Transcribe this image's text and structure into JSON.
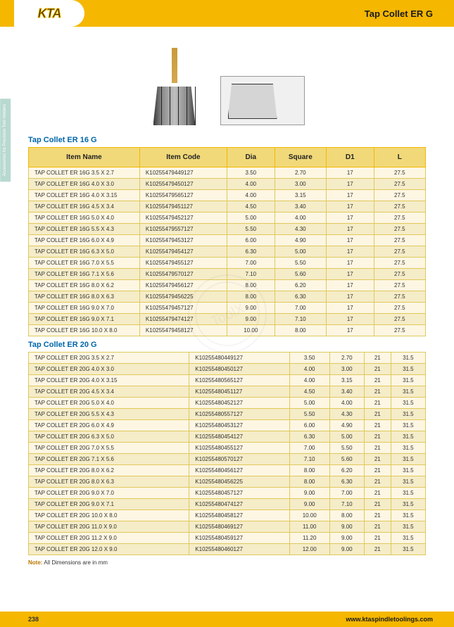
{
  "header": {
    "logo_text": "KTA",
    "title": "Tap Collet ER G",
    "side_tab": "Accessories for Precision Tool Holders"
  },
  "section1": {
    "title": "Tap Collet ER 16 G",
    "columns": [
      "Item Name",
      "Item Code",
      "Dia",
      "Square",
      "D1",
      "L"
    ],
    "col_widths": [
      "28%",
      "22%",
      "12%",
      "13%",
      "12%",
      "13%"
    ]
  },
  "section2": {
    "title": "Tap Collet ER 20 G"
  },
  "note_label": "Note:",
  "note_text": " All Dimensions are in mm",
  "footer": {
    "page_num": "238",
    "url": "www.ktaspindletoolings.com"
  },
  "table1_rows": [
    [
      "TAP COLLET ER 16G  3.5 X 2.7",
      "K10255479449127",
      "3.50",
      "2.70",
      "17",
      "27.5"
    ],
    [
      "TAP COLLET ER 16G  4.0 X 3.0",
      "K10255479450127",
      "4.00",
      "3.00",
      "17",
      "27.5"
    ],
    [
      "TAP COLLET ER 16G  4.0 X 3.15",
      "K10255479565127",
      "4.00",
      "3.15",
      "17",
      "27.5"
    ],
    [
      "TAP COLLET ER 16G  4.5 X 3.4",
      "K10255479451127",
      "4.50",
      "3.40",
      "17",
      "27.5"
    ],
    [
      "TAP COLLET ER 16G  5.0 X 4.0",
      "K10255479452127",
      "5.00",
      "4.00",
      "17",
      "27.5"
    ],
    [
      "TAP COLLET ER 16G  5.5 X 4.3",
      "K10255479557127",
      "5.50",
      "4.30",
      "17",
      "27.5"
    ],
    [
      "TAP COLLET ER 16G  6.0 X 4.9",
      "K10255479453127",
      "6.00",
      "4.90",
      "17",
      "27.5"
    ],
    [
      "TAP COLLET ER 16G  6.3 X 5.0",
      "K10255479454127",
      "6.30",
      "5.00",
      "17",
      "27.5"
    ],
    [
      "TAP COLLET ER 16G  7.0 X 5.5",
      "K10255479455127",
      "7.00",
      "5.50",
      "17",
      "27.5"
    ],
    [
      "TAP COLLET ER 16G  7.1 X 5.6",
      "K10255479570127",
      "7.10",
      "5.60",
      "17",
      "27.5"
    ],
    [
      "TAP COLLET ER 16G  8.0 X 6.2",
      "K10255479456127",
      "8.00",
      "6.20",
      "17",
      "27.5"
    ],
    [
      "TAP COLLET ER 16G  8.0 X 6.3",
      "K10255479456225",
      "8.00",
      "6.30",
      "17",
      "27.5"
    ],
    [
      "TAP COLLET ER 16G  9.0 X 7.0",
      "K10255479457127",
      "9.00",
      "7.00",
      "17",
      "27.5"
    ],
    [
      "TAP COLLET ER 16G  9.0 X 7.1",
      "K10255479474127",
      "9.00",
      "7.10",
      "17",
      "27.5"
    ],
    [
      "TAP COLLET ER 16G 10.0 X 8.0",
      "K10255479458127",
      "10.00",
      "8.00",
      "17",
      "27.5"
    ]
  ],
  "table2_rows": [
    [
      "TAP COLLET ER 20G  3.5 X 2.7",
      "K10255480449127",
      "3.50",
      "2.70",
      "21",
      "31.5"
    ],
    [
      "TAP COLLET ER 20G  4.0 X 3.0",
      "K10255480450127",
      "4.00",
      "3.00",
      "21",
      "31.5"
    ],
    [
      "TAP COLLET ER 20G  4.0 X 3.15",
      "K10255480565127",
      "4.00",
      "3.15",
      "21",
      "31.5"
    ],
    [
      "TAP COLLET ER 20G  4.5 X 3.4",
      "K10255480451127",
      "4.50",
      "3.40",
      "21",
      "31.5"
    ],
    [
      "TAP COLLET ER 20G  5.0 X 4.0",
      "K10255480452127",
      "5.00",
      "4.00",
      "21",
      "31.5"
    ],
    [
      "TAP COLLET ER 20G  5.5 X 4.3",
      "K10255480557127",
      "5.50",
      "4.30",
      "21",
      "31.5"
    ],
    [
      "TAP COLLET ER 20G  6.0 X 4.9",
      "K10255480453127",
      "6.00",
      "4.90",
      "21",
      "31.5"
    ],
    [
      "TAP COLLET ER 20G  6.3 X 5.0",
      "K10255480454127",
      "6.30",
      "5.00",
      "21",
      "31.5"
    ],
    [
      "TAP COLLET ER 20G  7.0 X 5.5",
      "K10255480455127",
      "7.00",
      "5.50",
      "21",
      "31.5"
    ],
    [
      "TAP COLLET ER 20G  7.1 X 5.6",
      "K10255480570127",
      "7.10",
      "5.60",
      "21",
      "31.5"
    ],
    [
      "TAP COLLET ER 20G  8.0 X 6.2",
      "K10255480456127",
      "8.00",
      "6.20",
      "21",
      "31.5"
    ],
    [
      "TAP COLLET ER 20G  8.0 X 6.3",
      "K10255480456225",
      "8.00",
      "6.30",
      "21",
      "31.5"
    ],
    [
      "TAP COLLET ER 20G  9.0 X 7.0",
      "K10255480457127",
      "9.00",
      "7.00",
      "21",
      "31.5"
    ],
    [
      "TAP COLLET ER 20G  9.0 X 7.1",
      "K10255480474127",
      "9.00",
      "7.10",
      "21",
      "31.5"
    ],
    [
      "TAP COLLET ER 20G 10.0 X 8.0",
      "K10255480458127",
      "10.00",
      "8.00",
      "21",
      "31.5"
    ],
    [
      "TAP COLLET ER 20G 11.0 X 9.0",
      "K10255480469127",
      "11.00",
      "9.00",
      "21",
      "31.5"
    ],
    [
      "TAP COLLET ER 20G 11.2 X 9.0",
      "K10255480459127",
      "11.20",
      "9.00",
      "21",
      "31.5"
    ],
    [
      "TAP COLLET ER 20G 12.0 X 9.0",
      "K10255480460127",
      "12.00",
      "9.00",
      "21",
      "31.5"
    ]
  ],
  "colors": {
    "accent": "#f5b700",
    "header_cell": "#f1d97a",
    "row_odd": "#fdf6e3",
    "row_even": "#f5ecc8",
    "section_title": "#0066aa"
  }
}
